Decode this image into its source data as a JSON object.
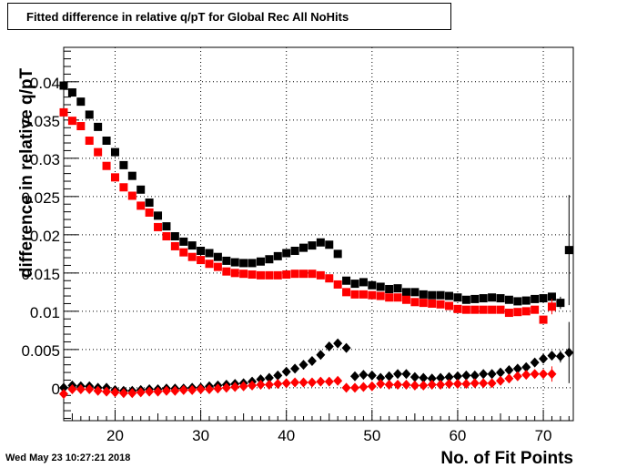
{
  "title": "Fitted difference in relative q/pT  for Global Rec All NoHits",
  "timestamp": "Wed May 23 10:27:21 2018",
  "chart_data": {
    "type": "scatter",
    "title": "Fitted difference in relative q/pT  for Global Rec All NoHits",
    "xlabel": "No. of Fit Points",
    "ylabel": "difference in relative q/pT",
    "xlim": [
      14,
      73.5
    ],
    "ylim": [
      -0.0043,
      0.0445
    ],
    "grid": true,
    "x_ticks": [
      "20",
      "30",
      "40",
      "50",
      "60",
      "70"
    ],
    "y_ticks": [
      "0",
      "0.005",
      "0.01",
      "0.015",
      "0.02",
      "0.025",
      "0.03",
      "0.035",
      "0.04"
    ],
    "series": [
      {
        "marker": "square",
        "color": "#000000",
        "x": [
          14,
          15,
          16,
          17,
          18,
          19,
          20,
          21,
          22,
          23,
          24,
          25,
          26,
          27,
          28,
          29,
          30,
          31,
          32,
          33,
          34,
          35,
          36,
          37,
          38,
          39,
          40,
          41,
          42,
          43,
          44,
          45,
          46,
          47,
          48,
          49,
          50,
          51,
          52,
          53,
          54,
          55,
          56,
          57,
          58,
          59,
          60,
          61,
          62,
          63,
          64,
          65,
          66,
          67,
          68,
          69,
          70,
          71,
          72,
          73
        ],
        "y": [
          0.0395,
          0.0386,
          0.0374,
          0.0357,
          0.0341,
          0.0323,
          0.0308,
          0.0291,
          0.0277,
          0.0259,
          0.0242,
          0.0225,
          0.0211,
          0.0198,
          0.0191,
          0.0186,
          0.0179,
          0.0176,
          0.0171,
          0.0166,
          0.0164,
          0.0163,
          0.0163,
          0.0165,
          0.0168,
          0.0172,
          0.0176,
          0.0179,
          0.0183,
          0.0186,
          0.019,
          0.0187,
          0.0175,
          0.014,
          0.0136,
          0.0138,
          0.0134,
          0.0132,
          0.0129,
          0.013,
          0.0125,
          0.0125,
          0.0122,
          0.0121,
          0.0121,
          0.012,
          0.0118,
          0.0115,
          0.0116,
          0.0117,
          0.0118,
          0.0117,
          0.0115,
          0.0113,
          0.0114,
          0.0116,
          0.0117,
          0.0119,
          0.0111,
          0.018
        ],
        "err": [
          0,
          0,
          0,
          0,
          0,
          0,
          0,
          0,
          0,
          0,
          0,
          0,
          0,
          0,
          0,
          0,
          0,
          0,
          0,
          0,
          0,
          0,
          0,
          0,
          0,
          0,
          0,
          0,
          0,
          0,
          0,
          0,
          0,
          0,
          0,
          0,
          0,
          0,
          0,
          0,
          0,
          0,
          0,
          0,
          0,
          0,
          0,
          0,
          0,
          0,
          0,
          0,
          0,
          0,
          0,
          0,
          0,
          0,
          0.0008,
          0.0072
        ]
      },
      {
        "marker": "square",
        "color": "#ff0000",
        "x": [
          14,
          15,
          16,
          17,
          18,
          19,
          20,
          21,
          22,
          23,
          24,
          25,
          26,
          27,
          28,
          29,
          30,
          31,
          32,
          33,
          34,
          35,
          36,
          37,
          38,
          39,
          40,
          41,
          42,
          43,
          44,
          45,
          46,
          47,
          48,
          49,
          50,
          51,
          52,
          53,
          54,
          55,
          56,
          57,
          58,
          59,
          60,
          61,
          62,
          63,
          64,
          65,
          66,
          67,
          68,
          69,
          70,
          71
        ],
        "y": [
          0.036,
          0.0349,
          0.0342,
          0.0323,
          0.0308,
          0.029,
          0.0275,
          0.0262,
          0.0251,
          0.0238,
          0.0229,
          0.021,
          0.0198,
          0.0185,
          0.0177,
          0.0171,
          0.0167,
          0.0162,
          0.0158,
          0.0152,
          0.015,
          0.0149,
          0.0148,
          0.0147,
          0.0147,
          0.0147,
          0.0148,
          0.0149,
          0.0149,
          0.0149,
          0.0147,
          0.0143,
          0.0135,
          0.0125,
          0.0122,
          0.0122,
          0.0121,
          0.012,
          0.0118,
          0.0118,
          0.0115,
          0.0112,
          0.0111,
          0.011,
          0.0109,
          0.0107,
          0.0103,
          0.0102,
          0.0102,
          0.0102,
          0.0102,
          0.0102,
          0.0098,
          0.0099,
          0.01,
          0.0102,
          0.0089,
          0.0106
        ],
        "err": [
          0,
          0,
          0,
          0,
          0,
          0,
          0,
          0,
          0,
          0,
          0,
          0,
          0,
          0,
          0,
          0,
          0,
          0,
          0,
          0,
          0,
          0,
          0,
          0,
          0,
          0,
          0,
          0,
          0,
          0,
          0,
          0,
          0,
          0,
          0,
          0,
          0,
          0,
          0,
          0,
          0,
          0,
          0,
          0,
          0,
          0,
          0,
          0,
          0,
          0,
          0,
          0,
          0,
          0,
          0,
          0,
          0.0005,
          0.001
        ]
      },
      {
        "marker": "diamond",
        "color": "#000000",
        "x": [
          14,
          15,
          16,
          17,
          18,
          19,
          20,
          21,
          22,
          23,
          24,
          25,
          26,
          27,
          28,
          29,
          30,
          31,
          32,
          33,
          34,
          35,
          36,
          37,
          38,
          39,
          40,
          41,
          42,
          43,
          44,
          45,
          46,
          47,
          48,
          49,
          50,
          51,
          52,
          53,
          54,
          55,
          56,
          57,
          58,
          59,
          60,
          61,
          62,
          63,
          64,
          65,
          66,
          67,
          68,
          69,
          70,
          71,
          72,
          73
        ],
        "y": [
          0.0,
          0.0003,
          0.0002,
          0.0002,
          0.0,
          0.0,
          -0.0003,
          -0.0004,
          -0.0004,
          -0.0003,
          -0.0002,
          -0.0002,
          -0.0001,
          -0.0001,
          -0.0001,
          0.0,
          0.0,
          0.0002,
          0.0003,
          0.0004,
          0.0005,
          0.0006,
          0.0008,
          0.0011,
          0.0013,
          0.0016,
          0.0021,
          0.0025,
          0.003,
          0.0035,
          0.0043,
          0.0054,
          0.0058,
          0.0052,
          0.0015,
          0.0017,
          0.0016,
          0.0013,
          0.0015,
          0.0018,
          0.0018,
          0.0014,
          0.0013,
          0.0012,
          0.0013,
          0.0014,
          0.0015,
          0.0016,
          0.0016,
          0.0018,
          0.0018,
          0.002,
          0.0023,
          0.0025,
          0.0027,
          0.0033,
          0.0038,
          0.0042,
          0.0041,
          0.0046
        ],
        "err": [
          0,
          0,
          0,
          0,
          0,
          0,
          0,
          0,
          0,
          0,
          0,
          0,
          0,
          0,
          0,
          0,
          0,
          0,
          0,
          0,
          0,
          0,
          0,
          0,
          0,
          0,
          0,
          0,
          0,
          0,
          0,
          0,
          0,
          0,
          0,
          0,
          0,
          0,
          0,
          0,
          0,
          0,
          0,
          0,
          0,
          0,
          0,
          0,
          0,
          0,
          0,
          0,
          0,
          0,
          0,
          0,
          0,
          0,
          0.0008,
          0.004
        ]
      },
      {
        "marker": "diamond",
        "color": "#ff0000",
        "x": [
          14,
          15,
          16,
          17,
          18,
          19,
          20,
          21,
          22,
          23,
          24,
          25,
          26,
          27,
          28,
          29,
          30,
          31,
          32,
          33,
          34,
          35,
          36,
          37,
          38,
          39,
          40,
          41,
          42,
          43,
          44,
          45,
          46,
          47,
          48,
          49,
          50,
          51,
          52,
          53,
          54,
          55,
          56,
          57,
          58,
          59,
          60,
          61,
          62,
          63,
          64,
          65,
          66,
          67,
          68,
          69,
          70,
          71
        ],
        "y": [
          -0.0008,
          -0.0002,
          -0.0002,
          -0.0002,
          -0.0004,
          -0.0005,
          -0.0006,
          -0.0007,
          -0.0007,
          -0.0006,
          -0.0005,
          -0.0005,
          -0.0004,
          -0.0004,
          -0.0003,
          -0.0003,
          -0.0002,
          -0.0002,
          -0.0001,
          0.0,
          0.0001,
          0.0002,
          0.0003,
          0.0004,
          0.0004,
          0.0005,
          0.0006,
          0.0007,
          0.0007,
          0.0007,
          0.0008,
          0.0008,
          0.0009,
          0.0,
          0.0,
          0.0001,
          0.0002,
          0.0005,
          0.0004,
          0.0004,
          0.0004,
          0.0003,
          0.0003,
          0.0004,
          0.0004,
          0.0005,
          0.0005,
          0.0005,
          0.0006,
          0.0006,
          0.0006,
          0.0009,
          0.0012,
          0.0015,
          0.0017,
          0.0018,
          0.0018,
          0.0018
        ],
        "err": [
          0,
          0,
          0,
          0,
          0,
          0,
          0,
          0,
          0,
          0,
          0,
          0,
          0,
          0,
          0,
          0,
          0,
          0,
          0,
          0,
          0,
          0,
          0,
          0,
          0,
          0,
          0,
          0,
          0,
          0,
          0,
          0,
          0,
          0,
          0,
          0,
          0,
          0,
          0,
          0,
          0,
          0,
          0,
          0,
          0,
          0,
          0,
          0,
          0,
          0,
          0,
          0,
          0,
          0,
          0,
          0,
          0.0004,
          0.001
        ]
      }
    ]
  }
}
